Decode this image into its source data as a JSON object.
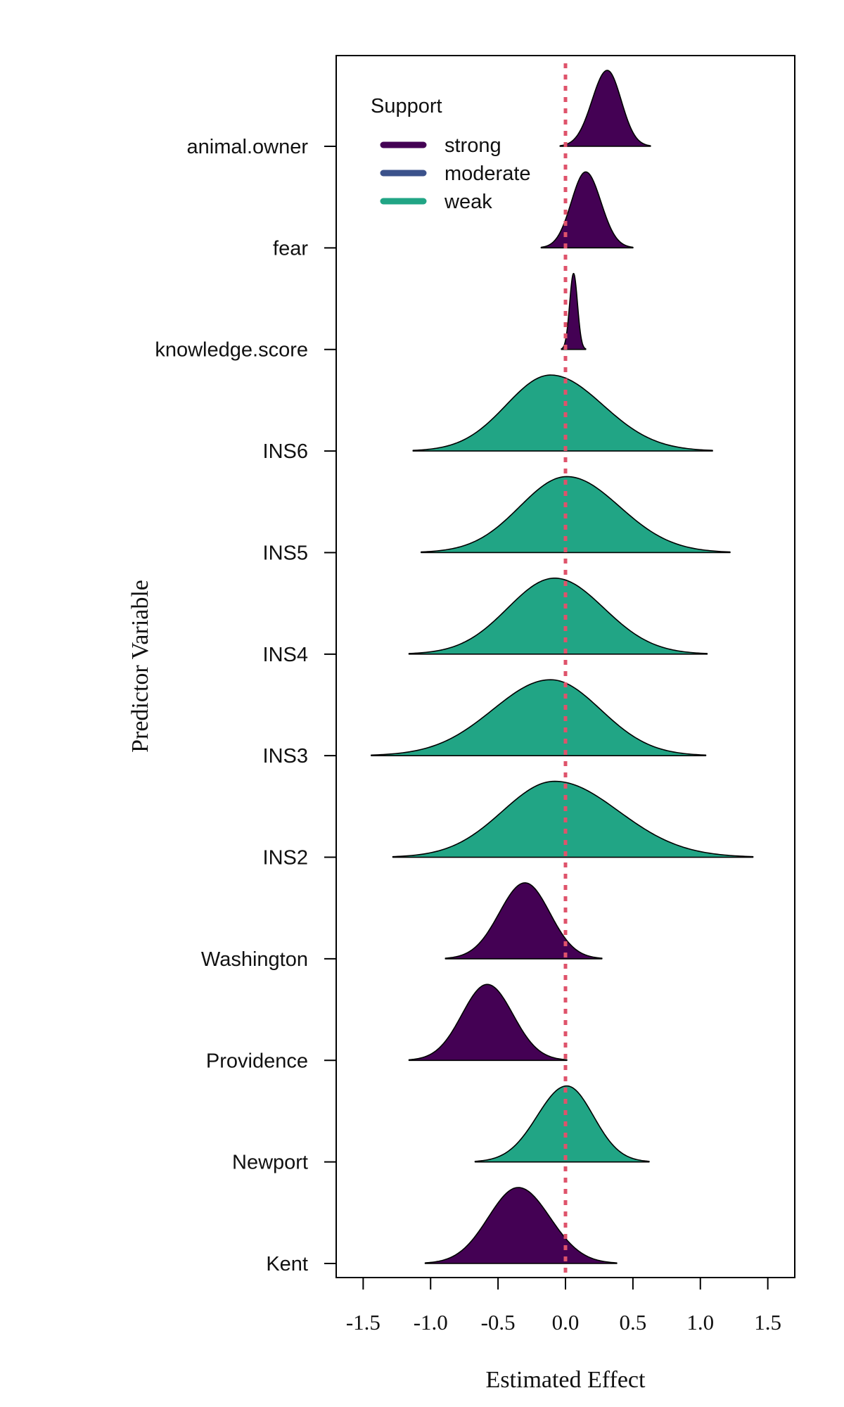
{
  "chart_data": {
    "type": "ridgeline",
    "xlabel": "Estimated Effect",
    "ylabel": "Predictor Variable",
    "xlim": [
      -1.7,
      1.7
    ],
    "x_ticks": [
      -1.5,
      -1.0,
      -0.5,
      0.0,
      0.5,
      1.0,
      1.5
    ],
    "x_tick_labels": [
      "-1.5",
      "-1.0",
      "-0.5",
      "0.0",
      "0.5",
      "1.0",
      "1.5"
    ],
    "reference_line": {
      "x": 0.0,
      "style": "dotted",
      "color": "#df536b"
    },
    "legend": {
      "title": "Support",
      "placement": "top-left",
      "entries": [
        {
          "label": "strong",
          "color": "#440154"
        },
        {
          "label": "moderate",
          "color": "#3b528b"
        },
        {
          "label": "weak",
          "color": "#21a585"
        }
      ]
    },
    "categories": [
      "animal.owner",
      "fear",
      "knowledge.score",
      "INS6",
      "INS5",
      "INS4",
      "INS3",
      "INS2",
      "Washington",
      "Providence",
      "Newport",
      "Kent"
    ],
    "series": [
      {
        "name": "animal.owner",
        "support": "strong",
        "mode": 0.31,
        "min": -0.04,
        "max": 0.63
      },
      {
        "name": "fear",
        "support": "strong",
        "mode": 0.15,
        "min": -0.18,
        "max": 0.5
      },
      {
        "name": "knowledge.score",
        "support": "strong",
        "mode": 0.06,
        "min": -0.03,
        "max": 0.15
      },
      {
        "name": "INS6",
        "support": "weak",
        "mode": -0.11,
        "min": -1.13,
        "max": 1.09
      },
      {
        "name": "INS5",
        "support": "weak",
        "mode": 0.01,
        "min": -1.07,
        "max": 1.22
      },
      {
        "name": "INS4",
        "support": "weak",
        "mode": -0.08,
        "min": -1.16,
        "max": 1.05
      },
      {
        "name": "INS3",
        "support": "weak",
        "mode": -0.11,
        "min": -1.44,
        "max": 1.04
      },
      {
        "name": "INS2",
        "support": "weak",
        "mode": -0.08,
        "min": -1.28,
        "max": 1.39
      },
      {
        "name": "Washington",
        "support": "strong",
        "mode": -0.3,
        "min": -0.89,
        "max": 0.27
      },
      {
        "name": "Providence",
        "support": "strong",
        "mode": -0.58,
        "min": -1.16,
        "max": 0.01
      },
      {
        "name": "Newport",
        "support": "weak",
        "mode": 0.01,
        "min": -0.67,
        "max": 0.62
      },
      {
        "name": "Kent",
        "support": "strong",
        "mode": -0.35,
        "min": -1.04,
        "max": 0.38
      }
    ]
  }
}
